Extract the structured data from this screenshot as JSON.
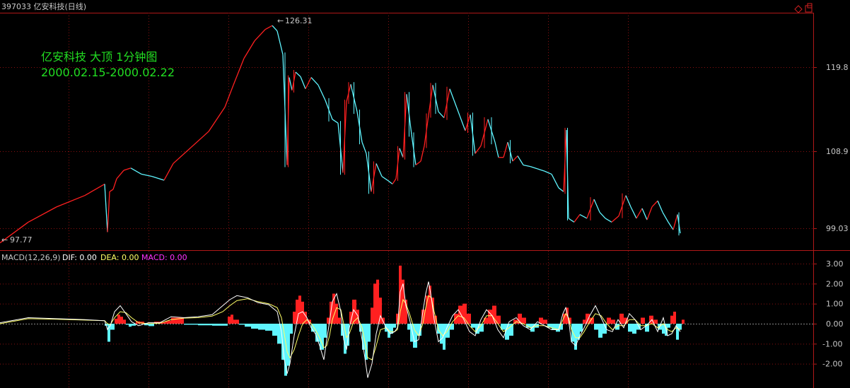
{
  "header": {
    "title": "397033 亿安科技(日线)",
    "corner_icons": [
      "diamond-icon",
      "restore-window-icon"
    ]
  },
  "annotation": {
    "line1": "亿安科技 大顶 1分钟图",
    "line2": "2000.02.15-2000.02.22",
    "color": "#22dd22"
  },
  "price_panel": {
    "high_label": "126.31",
    "low_label": "97.77",
    "y_ticks": [
      "119.8",
      "108.9",
      "99.03"
    ]
  },
  "macd_panel": {
    "name": "MACD(12,26,9)",
    "dif_label": "DIF: 0.00",
    "dea_label": "DEA: 0.00",
    "macd_label": "MACD: 0.00",
    "y_ticks": [
      "3.00",
      "2.00",
      "1.00",
      "0.00",
      "-1.00",
      "-2.00"
    ]
  },
  "colors": {
    "background": "#000000",
    "up": "#ff2020",
    "down": "#5ff5ff",
    "grid": "#8a1010",
    "axis": "#b01818",
    "dif": "#ffffff",
    "dea": "#ffff66",
    "macd_label": "#ff33ff",
    "text": "#c8c8c8"
  },
  "chart_data": [
    {
      "type": "line",
      "name": "price",
      "ylim": [
        97.0,
        128.0
      ],
      "x": [
        0,
        40,
        80,
        120,
        148,
        152,
        155,
        160,
        165,
        175,
        185,
        200,
        215,
        232,
        245,
        270,
        295,
        318,
        330,
        345,
        360,
        375,
        385,
        392,
        400,
        406,
        409,
        413,
        418,
        425,
        432,
        440,
        450,
        460,
        470,
        478,
        485,
        490,
        496,
        505,
        512,
        518,
        525,
        532,
        540,
        548,
        555,
        560,
        565,
        570,
        575,
        582,
        588,
        595,
        600,
        606,
        612,
        620,
        628,
        636,
        642,
        650,
        658,
        665,
        672,
        680,
        690,
        700,
        705,
        712,
        718,
        725,
        732,
        740,
        750,
        760,
        770,
        780,
        790,
        797,
        801,
        804,
        807,
        812,
        820,
        830,
        840,
        848,
        856,
        865,
        875,
        885,
        892,
        900,
        908,
        915,
        922,
        930,
        937,
        945,
        952,
        958,
        962
      ],
      "y": [
        97.77,
        100.5,
        102.5,
        104.0,
        105.5,
        99.2,
        104.5,
        104.8,
        106.2,
        107.3,
        107.6,
        106.8,
        106.5,
        106.0,
        108.2,
        110.3,
        112.4,
        115.6,
        118.5,
        122.0,
        124.3,
        125.8,
        126.31,
        125.6,
        122.5,
        108.0,
        119.5,
        117.8,
        120.2,
        119.6,
        118.0,
        119.5,
        118.5,
        116.5,
        114.0,
        113.5,
        107.0,
        116.3,
        118.6,
        115.0,
        111.0,
        109.5,
        104.5,
        108.2,
        106.5,
        106.0,
        105.5,
        106.2,
        110.2,
        109.0,
        117.3,
        112.0,
        108.0,
        108.5,
        110.5,
        114.5,
        118.5,
        115.0,
        114.2,
        118.0,
        116.5,
        114.5,
        112.5,
        114.6,
        109.5,
        110.5,
        114.0,
        111.0,
        109.0,
        109.0,
        111.0,
        108.5,
        109.2,
        108.0,
        107.8,
        107.5,
        107.2,
        106.8,
        105.0,
        104.5,
        112.6,
        101.0,
        100.8,
        100.5,
        101.5,
        101.0,
        103.5,
        101.8,
        101.0,
        100.5,
        101.3,
        104.0,
        102.5,
        101.0,
        102.3,
        100.8,
        102.5,
        103.3,
        101.8,
        100.5,
        99.5,
        101.5,
        99.03
      ]
    },
    {
      "type": "bar",
      "name": "MACD",
      "ylim": [
        -3.3,
        3.3
      ],
      "x": [
        148,
        152,
        156,
        162,
        166,
        170,
        174,
        178,
        182,
        186,
        192,
        198,
        204,
        210,
        218,
        226,
        234,
        242,
        260,
        280,
        300,
        322,
        326,
        330,
        338,
        346,
        355,
        365,
        375,
        385,
        392,
        398,
        402,
        406,
        410,
        414,
        418,
        422,
        426,
        430,
        434,
        440,
        446,
        452,
        458,
        462,
        466,
        470,
        474,
        478,
        482,
        486,
        490,
        494,
        498,
        504,
        508,
        512,
        516,
        520,
        524,
        528,
        532,
        536,
        540,
        544,
        548,
        552,
        556,
        560,
        564,
        568,
        572,
        576,
        580,
        584,
        590,
        596,
        602,
        606,
        610,
        614,
        618,
        622,
        626,
        630,
        636,
        642,
        648,
        654,
        660,
        666,
        672,
        678,
        684,
        690,
        696,
        702,
        708,
        714,
        720,
        726,
        732,
        738,
        744,
        750,
        756,
        762,
        768,
        774,
        780,
        786,
        792,
        796,
        800,
        804,
        808,
        812,
        816,
        820,
        824,
        828,
        834,
        840,
        846,
        852,
        858,
        864,
        870,
        876,
        882,
        888,
        894,
        900,
        906,
        912,
        918,
        924,
        930,
        936,
        940,
        944,
        948,
        952,
        956,
        960,
        964
      ],
      "values": [
        -0.1,
        -0.9,
        -0.3,
        0.25,
        0.45,
        0.35,
        0.2,
        -0.05,
        -0.15,
        -0.1,
        0.12,
        0.1,
        -0.08,
        -0.12,
        0.1,
        0.08,
        0.15,
        0.3,
        -0.05,
        -0.08,
        -0.1,
        0.35,
        0.45,
        0.2,
        -0.05,
        -0.15,
        -0.25,
        -0.3,
        -0.35,
        -0.6,
        -1.0,
        -1.8,
        -2.6,
        -2.1,
        -0.5,
        0.6,
        1.2,
        1.4,
        1.1,
        0.6,
        0.2,
        -0.4,
        -0.9,
        -1.3,
        -0.7,
        0.3,
        1.1,
        1.5,
        1.0,
        0.3,
        -0.6,
        -1.5,
        -1.1,
        0.6,
        1.2,
        0.7,
        -0.4,
        -1.3,
        -1.8,
        -0.9,
        0.8,
        2.0,
        2.2,
        1.3,
        0.3,
        -0.4,
        -0.7,
        -0.5,
        -0.2,
        0.5,
        2.9,
        2.2,
        1.2,
        -0.3,
        -0.9,
        -1.2,
        -0.6,
        0.7,
        1.4,
        1.9,
        1.3,
        0.4,
        -0.5,
        -1.0,
        -1.3,
        -0.7,
        -0.3,
        0.5,
        0.9,
        1.0,
        0.5,
        -0.2,
        -0.5,
        -0.4,
        0.3,
        0.7,
        0.9,
        0.4,
        -0.3,
        -0.8,
        -0.6,
        0.2,
        0.5,
        0.3,
        -0.2,
        -0.4,
        -0.2,
        0.3,
        0.2,
        -0.2,
        -0.3,
        -0.4,
        -0.3,
        0.5,
        0.8,
        0.3,
        -0.9,
        -1.3,
        -0.8,
        -0.4,
        0.2,
        0.5,
        0.3,
        -0.3,
        -0.7,
        -0.5,
        0.3,
        0.2,
        -0.3,
        0.5,
        0.3,
        -0.4,
        -0.5,
        -0.3,
        0.3,
        -0.4,
        0.4,
        0.2,
        -0.3,
        -0.5,
        -0.6,
        -0.2,
        0.4,
        0.6,
        -0.8,
        -0.3,
        0.2
      ]
    },
    {
      "type": "line",
      "name": "DIF",
      "ylim": [
        -3.3,
        3.3
      ],
      "x": [
        0,
        40,
        80,
        120,
        148,
        152,
        156,
        162,
        170,
        178,
        186,
        196,
        210,
        226,
        242,
        260,
        280,
        300,
        315,
        325,
        335,
        350,
        365,
        380,
        392,
        398,
        402,
        406,
        410,
        416,
        422,
        428,
        434,
        440,
        446,
        452,
        458,
        462,
        466,
        470,
        476,
        482,
        486,
        490,
        494,
        500,
        506,
        512,
        516,
        520,
        526,
        532,
        538,
        546,
        552,
        558,
        562,
        566,
        570,
        574,
        580,
        586,
        592,
        598,
        602,
        606,
        610,
        614,
        620,
        626,
        632,
        640,
        648,
        656,
        664,
        672,
        680,
        688,
        696,
        704,
        712,
        720,
        730,
        740,
        750,
        760,
        770,
        780,
        790,
        796,
        800,
        804,
        808,
        814,
        820,
        826,
        834,
        842,
        850,
        858,
        866,
        874,
        882,
        890,
        898,
        906,
        914,
        922,
        930,
        938,
        944,
        950,
        956,
        962
      ],
      "y": [
        0.05,
        0.3,
        0.25,
        0.2,
        0.15,
        -0.3,
        -0.1,
        0.6,
        0.9,
        0.5,
        0.1,
        -0.1,
        0.05,
        0.05,
        0.35,
        0.3,
        0.35,
        0.45,
        0.9,
        1.2,
        1.4,
        1.3,
        1.05,
        0.95,
        0.6,
        -0.4,
        -1.8,
        -2.5,
        -2.0,
        -0.6,
        0.5,
        0.6,
        0.3,
        -0.2,
        -0.5,
        -1.1,
        -1.8,
        -0.8,
        0.1,
        1.1,
        1.5,
        0.6,
        -0.8,
        -1.3,
        -0.2,
        0.7,
        0.4,
        -0.8,
        -1.7,
        -2.7,
        -2.0,
        -0.5,
        0.4,
        -0.2,
        -0.5,
        -0.4,
        -0.2,
        1.6,
        2.0,
        0.9,
        0.1,
        -0.9,
        -0.8,
        0.6,
        1.5,
        2.1,
        1.3,
        0.2,
        -0.9,
        -0.7,
        -0.2,
        0.4,
        0.7,
        0.2,
        -0.4,
        -0.6,
        0.2,
        0.7,
        0.4,
        -0.3,
        -0.7,
        0.1,
        0.3,
        -0.1,
        -0.3,
        0.1,
        -0.1,
        -0.3,
        -0.3,
        0.5,
        0.8,
        0.2,
        -0.9,
        -1.1,
        -0.6,
        -0.2,
        0.4,
        0.9,
        0.3,
        -0.3,
        -0.4,
        0.2,
        -0.2,
        0.5,
        0.2,
        -0.3,
        -0.1,
        0.2,
        -0.4,
        0.3,
        -0.6,
        -0.5,
        -0.1,
        -0.4
      ]
    },
    {
      "type": "line",
      "name": "DEA",
      "ylim": [
        -3.3,
        3.3
      ],
      "x": [
        0,
        40,
        80,
        120,
        148,
        152,
        156,
        162,
        170,
        178,
        186,
        196,
        210,
        226,
        242,
        260,
        280,
        300,
        315,
        325,
        335,
        350,
        365,
        380,
        392,
        398,
        402,
        406,
        410,
        416,
        422,
        428,
        434,
        440,
        446,
        452,
        458,
        462,
        466,
        470,
        476,
        482,
        486,
        490,
        494,
        500,
        506,
        512,
        516,
        520,
        526,
        532,
        538,
        546,
        552,
        558,
        562,
        566,
        570,
        574,
        580,
        586,
        592,
        598,
        602,
        606,
        610,
        614,
        620,
        626,
        632,
        640,
        648,
        656,
        664,
        672,
        680,
        688,
        696,
        704,
        712,
        720,
        730,
        740,
        750,
        760,
        770,
        780,
        790,
        796,
        800,
        804,
        808,
        814,
        820,
        826,
        834,
        842,
        850,
        858,
        866,
        874,
        882,
        890,
        898,
        906,
        914,
        922,
        930,
        938,
        944,
        950,
        956,
        962
      ],
      "y": [
        0.0,
        0.25,
        0.22,
        0.18,
        0.15,
        0.0,
        -0.05,
        0.3,
        0.6,
        0.55,
        0.3,
        0.05,
        0.0,
        0.02,
        0.2,
        0.28,
        0.3,
        0.38,
        0.6,
        0.9,
        1.15,
        1.25,
        1.1,
        1.0,
        0.8,
        0.3,
        -0.5,
        -1.4,
        -1.7,
        -1.3,
        -0.6,
        0.0,
        0.2,
        0.0,
        -0.3,
        -0.7,
        -1.2,
        -1.1,
        -0.6,
        0.2,
        0.8,
        0.7,
        0.0,
        -0.7,
        -0.5,
        0.1,
        0.3,
        -0.2,
        -0.9,
        -1.7,
        -1.8,
        -1.1,
        -0.3,
        -0.2,
        -0.4,
        -0.4,
        -0.3,
        0.6,
        1.2,
        1.0,
        0.4,
        -0.3,
        -0.6,
        0.0,
        0.8,
        1.4,
        1.3,
        0.6,
        -0.3,
        -0.6,
        -0.4,
        0.1,
        0.4,
        0.3,
        -0.1,
        -0.4,
        -0.1,
        0.4,
        0.4,
        0.0,
        -0.4,
        -0.2,
        0.1,
        0.0,
        -0.2,
        -0.1,
        -0.1,
        -0.2,
        -0.3,
        0.2,
        0.5,
        0.3,
        -0.3,
        -0.7,
        -0.7,
        -0.4,
        0.1,
        0.5,
        0.4,
        0.0,
        -0.3,
        -0.1,
        -0.1,
        0.2,
        0.2,
        -0.1,
        -0.1,
        0.0,
        -0.2,
        0.0,
        -0.3,
        -0.4,
        -0.2,
        -0.3
      ]
    }
  ]
}
